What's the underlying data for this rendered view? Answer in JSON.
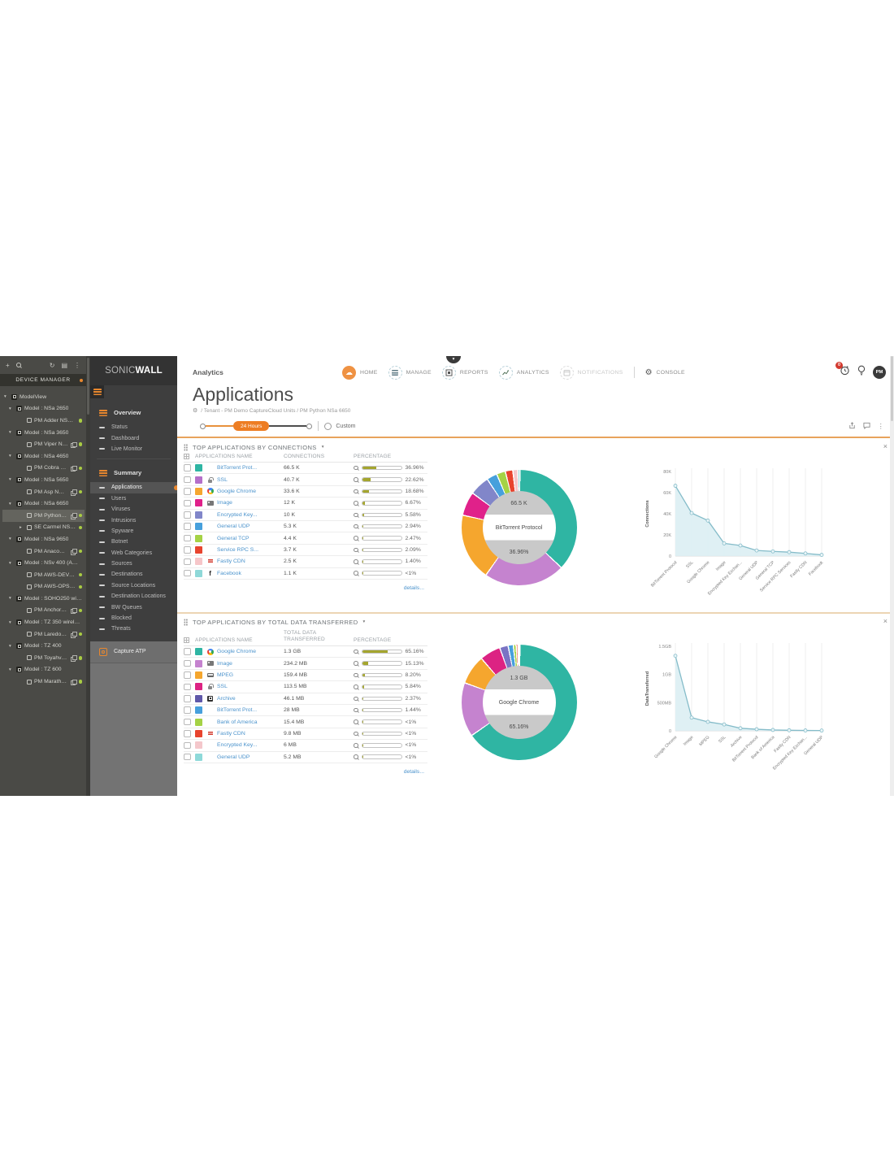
{
  "icons": {
    "plus": "+",
    "refresh": "↻",
    "list": "▤",
    "kebab": "⋮",
    "caret_down": "▾",
    "caret_right": "▸",
    "gear": "⚙",
    "cloud": "☁",
    "close": "×",
    "dropdown": "▾",
    "facebook_f": "f"
  },
  "device_manager": {
    "title": "DEVICE MANAGER",
    "tree": [
      {
        "label": "ModelView",
        "level": 0,
        "caret": "down",
        "kind": "model",
        "clone": false,
        "online": false,
        "selected": false
      },
      {
        "label": "Model : NSa 2650",
        "level": 1,
        "caret": "down",
        "kind": "model",
        "clone": false,
        "online": false,
        "selected": false
      },
      {
        "label": "PM Adder NSa 2650",
        "level": 2,
        "caret": "",
        "kind": "device",
        "clone": false,
        "online": true,
        "selected": false
      },
      {
        "label": "Model : NSa 3650",
        "level": 1,
        "caret": "down",
        "kind": "model",
        "clone": false,
        "online": false,
        "selected": false
      },
      {
        "label": "PM Viper NSa 3...",
        "level": 2,
        "caret": "",
        "kind": "device",
        "clone": true,
        "online": true,
        "selected": false
      },
      {
        "label": "Model : NSa 4650",
        "level": 1,
        "caret": "down",
        "kind": "model",
        "clone": false,
        "online": false,
        "selected": false
      },
      {
        "label": "PM Cobra NSa ...",
        "level": 2,
        "caret": "",
        "kind": "device",
        "clone": true,
        "online": true,
        "selected": false
      },
      {
        "label": "Model : NSa 5650",
        "level": 1,
        "caret": "down",
        "kind": "model",
        "clone": false,
        "online": false,
        "selected": false
      },
      {
        "label": "PM Asp NSa 56...",
        "level": 2,
        "caret": "",
        "kind": "device",
        "clone": true,
        "online": true,
        "selected": false
      },
      {
        "label": "Model : NSa 6650",
        "level": 1,
        "caret": "down",
        "kind": "model",
        "clone": false,
        "online": false,
        "selected": false
      },
      {
        "label": "PM Python NSa...",
        "level": 2,
        "caret": "",
        "kind": "device",
        "clone": true,
        "online": true,
        "selected": true
      },
      {
        "label": "SE Carmel NSa6650",
        "level": 2,
        "caret": "right",
        "kind": "device",
        "clone": false,
        "online": true,
        "selected": false
      },
      {
        "label": "Model : NSa 9650",
        "level": 1,
        "caret": "down",
        "kind": "model",
        "clone": false,
        "online": false,
        "selected": false
      },
      {
        "label": "PM Anaconda ...",
        "level": 2,
        "caret": "",
        "kind": "device",
        "clone": true,
        "online": true,
        "selected": false
      },
      {
        "label": "Model : NSv 400 (AWS)",
        "level": 1,
        "caret": "down",
        "kind": "model",
        "clone": false,
        "online": false,
        "selected": false
      },
      {
        "label": "PM AWS-DEV-NS...",
        "level": 2,
        "caret": "",
        "kind": "device",
        "clone": false,
        "online": true,
        "selected": false
      },
      {
        "label": "PM AWS-OPS-NS...",
        "level": 2,
        "caret": "",
        "kind": "device",
        "clone": false,
        "online": true,
        "selected": false
      },
      {
        "label": "Model : SOHO250 wirele...",
        "level": 1,
        "caret": "down",
        "kind": "model",
        "clone": false,
        "online": false,
        "selected": false
      },
      {
        "label": "PM Anchorage ...",
        "level": 2,
        "caret": "",
        "kind": "device",
        "clone": true,
        "online": true,
        "selected": false
      },
      {
        "label": "Model : TZ 350 wireless-...",
        "level": 1,
        "caret": "down",
        "kind": "model",
        "clone": false,
        "online": false,
        "selected": false
      },
      {
        "label": "PM Laredo - TZ...",
        "level": 2,
        "caret": "",
        "kind": "device",
        "clone": true,
        "online": true,
        "selected": false
      },
      {
        "label": "Model : TZ 400",
        "level": 1,
        "caret": "down",
        "kind": "model",
        "clone": false,
        "online": false,
        "selected": false
      },
      {
        "label": "PM Toyahvale T...",
        "level": 2,
        "caret": "",
        "kind": "device",
        "clone": true,
        "online": true,
        "selected": false
      },
      {
        "label": "Model : TZ 600",
        "level": 1,
        "caret": "down",
        "kind": "model",
        "clone": false,
        "online": false,
        "selected": false
      },
      {
        "label": "PM Marathon T...",
        "level": 2,
        "caret": "",
        "kind": "device",
        "clone": true,
        "online": true,
        "selected": false
      }
    ]
  },
  "brand": {
    "part_a": "SONIC",
    "part_b": "WALL"
  },
  "menu": {
    "entries": [
      {
        "type": "header",
        "label": "Overview"
      },
      {
        "type": "item",
        "label": "Status"
      },
      {
        "type": "item",
        "label": "Dashboard"
      },
      {
        "type": "item",
        "label": "Live Monitor"
      },
      {
        "type": "divider"
      },
      {
        "type": "header",
        "label": "Summary"
      },
      {
        "type": "item",
        "label": "Applications",
        "active": true
      },
      {
        "type": "item",
        "label": "Users"
      },
      {
        "type": "item",
        "label": "Viruses"
      },
      {
        "type": "item",
        "label": "Intrusions"
      },
      {
        "type": "item",
        "label": "Spyware"
      },
      {
        "type": "item",
        "label": "Botnet"
      },
      {
        "type": "item",
        "label": "Web Categories"
      },
      {
        "type": "item",
        "label": "Sources"
      },
      {
        "type": "item",
        "label": "Destinations"
      },
      {
        "type": "item",
        "label": "Source Locations"
      },
      {
        "type": "item",
        "label": "Destination Locations"
      },
      {
        "type": "item",
        "label": "BW Queues"
      },
      {
        "type": "item",
        "label": "Blocked"
      },
      {
        "type": "item",
        "label": "Threats"
      }
    ],
    "capture_label": "Capture ATP"
  },
  "nav": {
    "app_label": "Analytics",
    "items": [
      {
        "label": "HOME"
      },
      {
        "label": "MANAGE"
      },
      {
        "label": "REPORTS"
      },
      {
        "label": "ANALYTICS"
      },
      {
        "label": "NOTIFICATIONS"
      },
      {
        "label": "CONSOLE"
      }
    ],
    "alarm_badge": "0",
    "avatar": "PM"
  },
  "page": {
    "title": "Applications",
    "breadcrumb": "/ Tenant - PM Demo CaptureCloud Units / PM Python NSa 6650"
  },
  "time_filter": {
    "selected": "24 Hours",
    "custom_label": "Custom"
  },
  "sections": [
    {
      "title": "TOP APPLICATIONS BY CONNECTIONS",
      "columns": [
        "APPLICATIONS NAME",
        "CONNECTIONS",
        "PERCENTAGE"
      ],
      "details_label": "details...",
      "rows": [
        {
          "name": "BitTorrent Prot...",
          "value": "66.5 K",
          "pct_label": "36.96%",
          "pct": 36.96,
          "color": "#2fb5a3",
          "icon": ""
        },
        {
          "name": "SSL",
          "value": "40.7 K",
          "pct_label": "22.62%",
          "pct": 22.62,
          "color": "#b46fc9",
          "icon": "lock"
        },
        {
          "name": "Google Chrome",
          "value": "33.6 K",
          "pct_label": "18.68%",
          "pct": 18.68,
          "color": "#f5a62e",
          "icon": "chrome"
        },
        {
          "name": "Image",
          "value": "12 K",
          "pct_label": "6.67%",
          "pct": 6.67,
          "color": "#e0218a",
          "icon": "image"
        },
        {
          "name": "Encrypted Key...",
          "value": "10 K",
          "pct_label": "5.58%",
          "pct": 5.58,
          "color": "#8186c9",
          "icon": ""
        },
        {
          "name": "General UDP",
          "value": "5.3 K",
          "pct_label": "2.94%",
          "pct": 2.94,
          "color": "#47a0dc",
          "icon": ""
        },
        {
          "name": "General TCP",
          "value": "4.4 K",
          "pct_label": "2.47%",
          "pct": 2.47,
          "color": "#a5d245",
          "icon": ""
        },
        {
          "name": "Service RPC S...",
          "value": "3.7 K",
          "pct_label": "2.09%",
          "pct": 2.09,
          "color": "#e8442e",
          "icon": ""
        },
        {
          "name": "Fastly CDN",
          "value": "2.5 K",
          "pct_label": "1.40%",
          "pct": 1.4,
          "color": "#f6c6c9",
          "icon": "fastly"
        },
        {
          "name": "Facebook",
          "value": "1.1 K",
          "pct_label": "<1%",
          "pct": 0.59,
          "color": "#8fd8d8",
          "icon": "facebook"
        }
      ],
      "slices": [
        {
          "pct": 36.96,
          "color": "#2fb5a3"
        },
        {
          "pct": 22.62,
          "color": "#c583cf"
        },
        {
          "pct": 18.68,
          "color": "#f5a62e"
        },
        {
          "pct": 6.67,
          "color": "#e0218a"
        },
        {
          "pct": 5.58,
          "color": "#8186c9"
        },
        {
          "pct": 2.94,
          "color": "#47a0dc"
        },
        {
          "pct": 2.47,
          "color": "#a5d245"
        },
        {
          "pct": 2.09,
          "color": "#e8442e"
        },
        {
          "pct": 1.4,
          "color": "#f6c6c9"
        },
        {
          "pct": 0.59,
          "color": "#8fd8d8"
        }
      ],
      "center": {
        "value": "66.5 K",
        "name": "BitTorrent Protocol",
        "pct": "36.96%"
      },
      "chart": {
        "type": "area-line",
        "ylabel": "Connections",
        "ymax": 80000,
        "yticks": [
          {
            "v": 0,
            "label": "0"
          },
          {
            "v": 20000,
            "label": "20K"
          },
          {
            "v": 40000,
            "label": "40K"
          },
          {
            "v": 60000,
            "label": "60K"
          },
          {
            "v": 80000,
            "label": "80K"
          }
        ],
        "x": [
          "BitTorrent Protocol",
          "SSL",
          "Google Chrome",
          "Image",
          "Encrypted Key Exchan...",
          "General UDP",
          "General TCP",
          "Service RPC Services",
          "Fastly CDN",
          "Facebook"
        ],
        "values": [
          66500,
          40700,
          33600,
          12000,
          10000,
          5300,
          4400,
          3700,
          2500,
          1100
        ]
      }
    },
    {
      "title": "TOP APPLICATIONS BY TOTAL DATA TRANSFERRED",
      "columns": [
        "APPLICATIONS NAME",
        "TOTAL DATA TRANSFERRED",
        "PERCENTAGE"
      ],
      "details_label": "details...",
      "rows": [
        {
          "name": "Google Chrome",
          "value": "1.3 GB",
          "pct_label": "65.16%",
          "pct": 65.16,
          "color": "#2fb5a3",
          "icon": "chrome"
        },
        {
          "name": "Image",
          "value": "234.2 MB",
          "pct_label": "15.13%",
          "pct": 15.13,
          "color": "#c583cf",
          "icon": "image"
        },
        {
          "name": "MPEG",
          "value": "159.4 MB",
          "pct_label": "8.20%",
          "pct": 8.2,
          "color": "#f5a62e",
          "icon": "film"
        },
        {
          "name": "SSL",
          "value": "113.5 MB",
          "pct_label": "5.84%",
          "pct": 5.84,
          "color": "#dc2383",
          "icon": "lock"
        },
        {
          "name": "Archive",
          "value": "46.1 MB",
          "pct_label": "2.37%",
          "pct": 2.37,
          "color": "#5f58a9",
          "icon": "archive"
        },
        {
          "name": "BitTorrent Prot...",
          "value": "28 MB",
          "pct_label": "1.44%",
          "pct": 1.44,
          "color": "#47a0dc",
          "icon": ""
        },
        {
          "name": "Bank of America",
          "value": "15.4 MB",
          "pct_label": "<1%",
          "pct": 0.77,
          "color": "#a5d245",
          "icon": ""
        },
        {
          "name": "Fastly CDN",
          "value": "9.8 MB",
          "pct_label": "<1%",
          "pct": 0.49,
          "color": "#e8442e",
          "icon": "fastly"
        },
        {
          "name": "Encrypted Key...",
          "value": "6 MB",
          "pct_label": "<1%",
          "pct": 0.3,
          "color": "#f4c7cb",
          "icon": ""
        },
        {
          "name": "General UDP",
          "value": "5.2 MB",
          "pct_label": "<1%",
          "pct": 0.3,
          "color": "#8ed9d9",
          "icon": ""
        }
      ],
      "slices": [
        {
          "pct": 65.16,
          "color": "#2fb5a3"
        },
        {
          "pct": 15.13,
          "color": "#c583cf"
        },
        {
          "pct": 8.2,
          "color": "#f5a62e"
        },
        {
          "pct": 5.84,
          "color": "#dc2383"
        },
        {
          "pct": 2.37,
          "color": "#7a73c4"
        },
        {
          "pct": 1.44,
          "color": "#47a0dc"
        },
        {
          "pct": 0.77,
          "color": "#a5d245"
        },
        {
          "pct": 0.49,
          "color": "#e8442e"
        },
        {
          "pct": 0.3,
          "color": "#f4c7cb"
        },
        {
          "pct": 0.3,
          "color": "#8ed9d9"
        }
      ],
      "center": {
        "value": "1.3 GB",
        "name": "Google Chrome",
        "pct": "65.16%"
      },
      "chart": {
        "type": "area-line",
        "ylabel": "DataTransferred",
        "ymax": 1500,
        "yticks": [
          {
            "v": 0,
            "label": "0"
          },
          {
            "v": 500,
            "label": "500MB"
          },
          {
            "v": 1000,
            "label": "1GB"
          },
          {
            "v": 1500,
            "label": "1.5GB"
          }
        ],
        "x": [
          "Google Chrome",
          "Image",
          "MPEG",
          "SSL",
          "Archive",
          "BitTorrent Protocol",
          "Bank of America",
          "Fastly CDN",
          "Encrypted Key Exchan...",
          "General UDP"
        ],
        "values": [
          1331,
          234.2,
          159.4,
          113.5,
          46.1,
          28,
          15.4,
          9.8,
          6,
          5.2
        ]
      }
    }
  ]
}
